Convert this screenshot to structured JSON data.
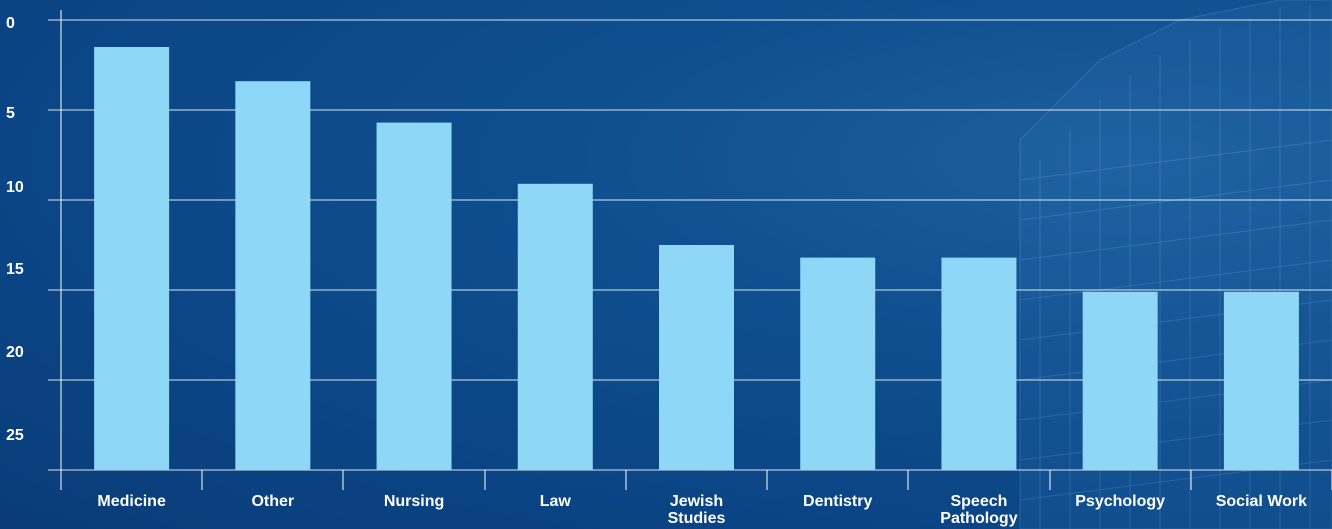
{
  "chart_data": {
    "type": "bar",
    "title": "",
    "xlabel": "",
    "ylabel": "",
    "categories": [
      [
        "Medicine"
      ],
      [
        "Other"
      ],
      [
        "Nursing"
      ],
      [
        "Law"
      ],
      [
        "Jewish",
        "Studies"
      ],
      [
        "Dentistry"
      ],
      [
        "Speech",
        "Pathology"
      ],
      [
        "Psychology"
      ],
      [
        "Social Work"
      ]
    ],
    "values": [
      23.5,
      21.6,
      19.3,
      15.9,
      12.5,
      11.8,
      11.8,
      9.9,
      9.9
    ],
    "y_ticks": [
      "0",
      "5",
      "10",
      "15",
      "20",
      "25"
    ],
    "ylim": [
      0,
      25
    ],
    "grid": true,
    "legend": "none",
    "colors": {
      "bar": "#8fd7f7",
      "gridline": "#ffffff",
      "text": "#ffffff",
      "background": "#0c4888"
    }
  }
}
